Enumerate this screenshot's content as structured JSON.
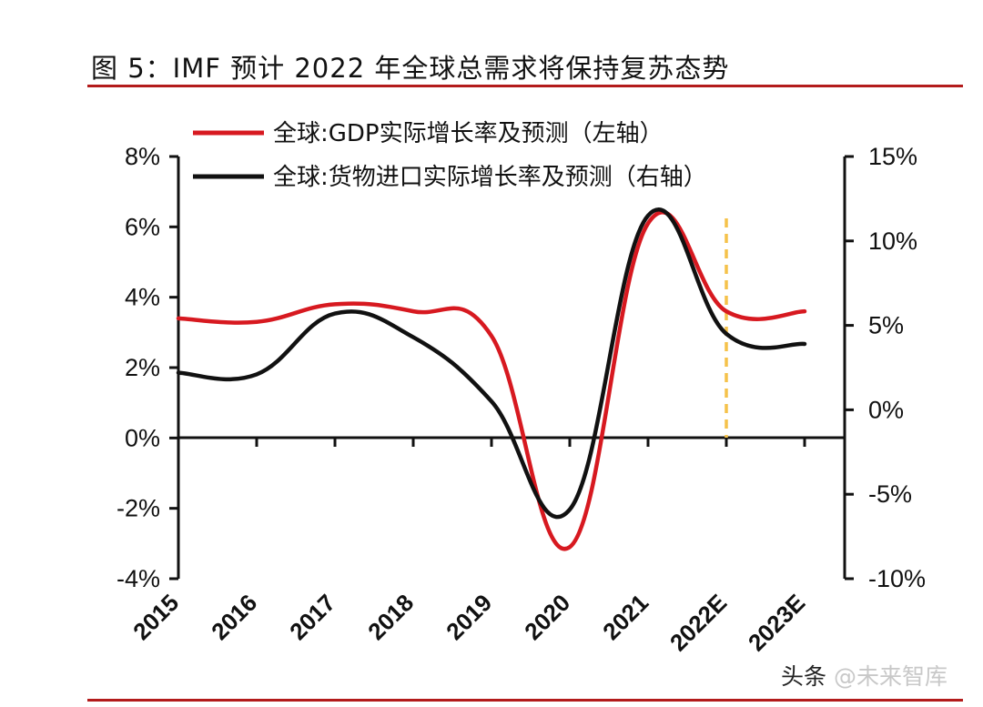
{
  "title": "图 5：IMF 预计 2022 年全球总需求将保持复苏态势",
  "watermark": {
    "prefix": "头条",
    "handle": "@未来智库"
  },
  "chart_data": {
    "type": "line",
    "categories": [
      "2015",
      "2016",
      "2017",
      "2018",
      "2019",
      "2020",
      "2021",
      "2022E",
      "2023E"
    ],
    "y_left": {
      "ticks": [
        "8%",
        "6%",
        "4%",
        "2%",
        "0%",
        "-2%",
        "-4%"
      ],
      "min": -4,
      "max": 8
    },
    "y_right": {
      "ticks": [
        "15%",
        "10%",
        "5%",
        "0%",
        "-5%",
        "-10%"
      ],
      "min": -10,
      "max": 15
    },
    "series": [
      {
        "name": "全球:GDP实际增长率及预测（左轴）",
        "axis": "left",
        "color": "#d71920",
        "x": [
          0,
          1,
          2,
          3,
          4,
          5,
          6,
          7,
          8
        ],
        "values": [
          3.4,
          3.3,
          3.8,
          3.6,
          2.9,
          -3.1,
          6.1,
          3.6,
          3.6
        ]
      },
      {
        "name": "全球:货物进口实际增长率及预测（右轴）",
        "axis": "right",
        "color": "#111111",
        "x": [
          0,
          1,
          2,
          3,
          4,
          5,
          6,
          7,
          8
        ],
        "values": [
          2.2,
          2.1,
          5.7,
          4.3,
          0.5,
          -5.9,
          11.5,
          4.5,
          3.9
        ]
      }
    ],
    "forecast_marker": {
      "category": "2022E",
      "color": "#f5c24a"
    }
  }
}
